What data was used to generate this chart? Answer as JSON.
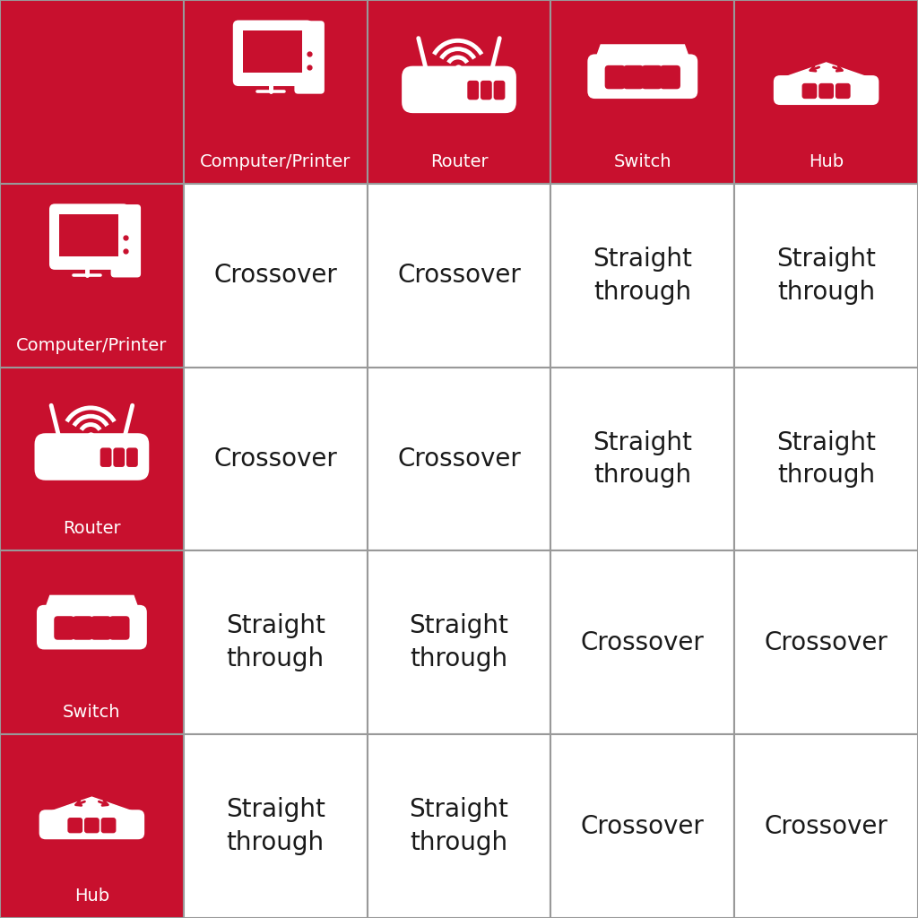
{
  "bg_color": "#ffffff",
  "red_color": "#C8102E",
  "white_color": "#ffffff",
  "gray_border": "#999999",
  "cols": [
    "Computer/Printer",
    "Router",
    "Switch",
    "Hub"
  ],
  "rows": [
    "Computer/Printer",
    "Router",
    "Switch",
    "Hub"
  ],
  "table_data": [
    [
      "Crossover",
      "Crossover",
      "Straight\nthrough",
      "Straight\nthrough"
    ],
    [
      "Crossover",
      "Crossover",
      "Straight\nthrough",
      "Straight\nthrough"
    ],
    [
      "Straight\nthrough",
      "Straight\nthrough",
      "Crossover",
      "Crossover"
    ],
    [
      "Straight\nthrough",
      "Straight\nthrough",
      "Crossover",
      "Crossover"
    ]
  ],
  "text_fontsize": 20,
  "label_fontsize": 14
}
